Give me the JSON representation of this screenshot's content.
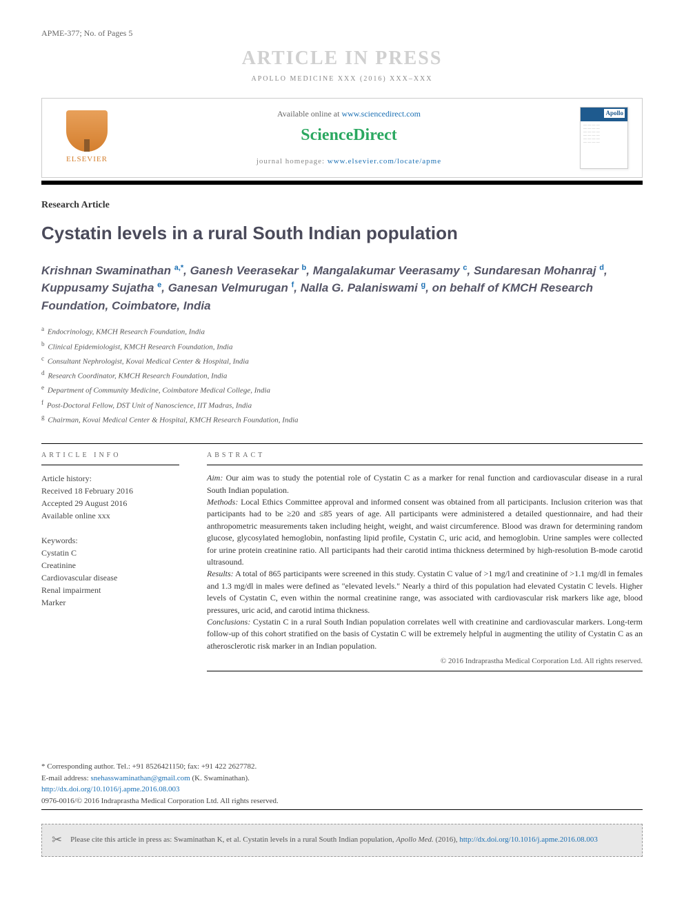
{
  "header": {
    "model_no": "APME-377; No. of Pages 5",
    "watermark": "ARTICLE IN PRESS",
    "journal_ref": "APOLLO MEDICINE XXX (2016) XXX–XXX",
    "available_text": "Available online at ",
    "available_link": "www.sciencedirect.com",
    "sciencedirect": "ScienceDirect",
    "homepage_label": "journal homepage: ",
    "homepage_link": "www.elsevier.com/locate/apme",
    "elsevier": "ELSEVIER",
    "cover_brand": "Apollo"
  },
  "article": {
    "type": "Research Article",
    "title": "Cystatin levels in a rural South Indian population",
    "authors_html": "Krishnan Swaminathan <sup>a,*</sup>, Ganesh Veerasekar <sup>b</sup>, Mangalakumar Veerasamy <sup>c</sup>, Sundaresan Mohanraj <sup>d</sup>, Kuppusamy Sujatha <sup>e</sup>, Ganesan Velmurugan <sup>f</sup>, Nalla G. Palaniswami <sup>g</sup>, on behalf of KMCH Research Foundation, Coimbatore, India",
    "affiliations": [
      "a|Endocrinology, KMCH Research Foundation, India",
      "b|Clinical Epidemiologist, KMCH Research Foundation, India",
      "c|Consultant Nephrologist, Kovai Medical Center & Hospital, India",
      "d|Research Coordinator, KMCH Research Foundation, India",
      "e|Department of Community Medicine, Coimbatore Medical College, India",
      "f|Post-Doctoral Fellow, DST Unit of Nanoscience, IIT Madras, India",
      "g|Chairman, Kovai Medical Center & Hospital, KMCH Research Foundation, India"
    ]
  },
  "info": {
    "head": "ARTICLE INFO",
    "history_label": "Article history:",
    "received": "Received 18 February 2016",
    "accepted": "Accepted 29 August 2016",
    "available": "Available online xxx",
    "keywords_label": "Keywords:",
    "keywords": [
      "Cystatin C",
      "Creatinine",
      "Cardiovascular disease",
      "Renal impairment",
      "Marker"
    ]
  },
  "abstract": {
    "head": "ABSTRACT",
    "aim_label": "Aim:",
    "aim": " Our aim was to study the potential role of Cystatin C as a marker for renal function and cardiovascular disease in a rural South Indian population.",
    "methods_label": "Methods:",
    "methods": " Local Ethics Committee approval and informed consent was obtained from all participants. Inclusion criterion was that participants had to be ≥20 and ≤85 years of age. All participants were administered a detailed questionnaire, and had their anthropometric measurements taken including height, weight, and waist circumference. Blood was drawn for determining random glucose, glycosylated hemoglobin, nonfasting lipid profile, Cystatin C, uric acid, and hemoglobin. Urine samples were collected for urine protein creatinine ratio. All participants had their carotid intima thickness determined by high-resolution B-mode carotid ultrasound.",
    "results_label": "Results:",
    "results": " A total of 865 participants were screened in this study. Cystatin C value of >1 mg/l and creatinine of >1.1 mg/dl in females and 1.3 mg/dl in males were defined as \"elevated levels.\" Nearly a third of this population had elevated Cystatin C levels. Higher levels of Cystatin C, even within the normal creatinine range, was associated with cardiovascular risk markers like age, blood pressures, uric acid, and carotid intima thickness.",
    "conclusions_label": "Conclusions:",
    "conclusions": " Cystatin C in a rural South Indian population correlates well with creatinine and cardiovascular markers. Long-term follow-up of this cohort stratified on the basis of Cystatin C will be extremely helpful in augmenting the utility of Cystatin C as an atherosclerotic risk marker in an Indian population.",
    "copyright": "© 2016 Indraprastha Medical Corporation Ltd. All rights reserved."
  },
  "footer": {
    "corresponding": "* Corresponding author. Tel.: +91 8526421150; fax: +91 422 2627782.",
    "email_label": "E-mail address: ",
    "email": "snehasswaminathan@gmail.com",
    "email_paren": " (K. Swaminathan).",
    "doi": "http://dx.doi.org/10.1016/j.apme.2016.08.003",
    "issn_line": "0976-0016/© 2016 Indraprastha Medical Corporation Ltd. All rights reserved."
  },
  "citation": {
    "text_pre": "Please cite this article in press as: Swaminathan K, et al. Cystatin levels in a rural South Indian population, ",
    "journal": "Apollo Med.",
    "year": " (2016), ",
    "link": "http://dx.doi.org/10.1016/j.apme.2016.08.003"
  },
  "colors": {
    "link": "#1a6fb3",
    "elsevier_orange": "#d47f2e",
    "sd_green": "#2aa860",
    "title_gray": "#4a4a5a"
  }
}
